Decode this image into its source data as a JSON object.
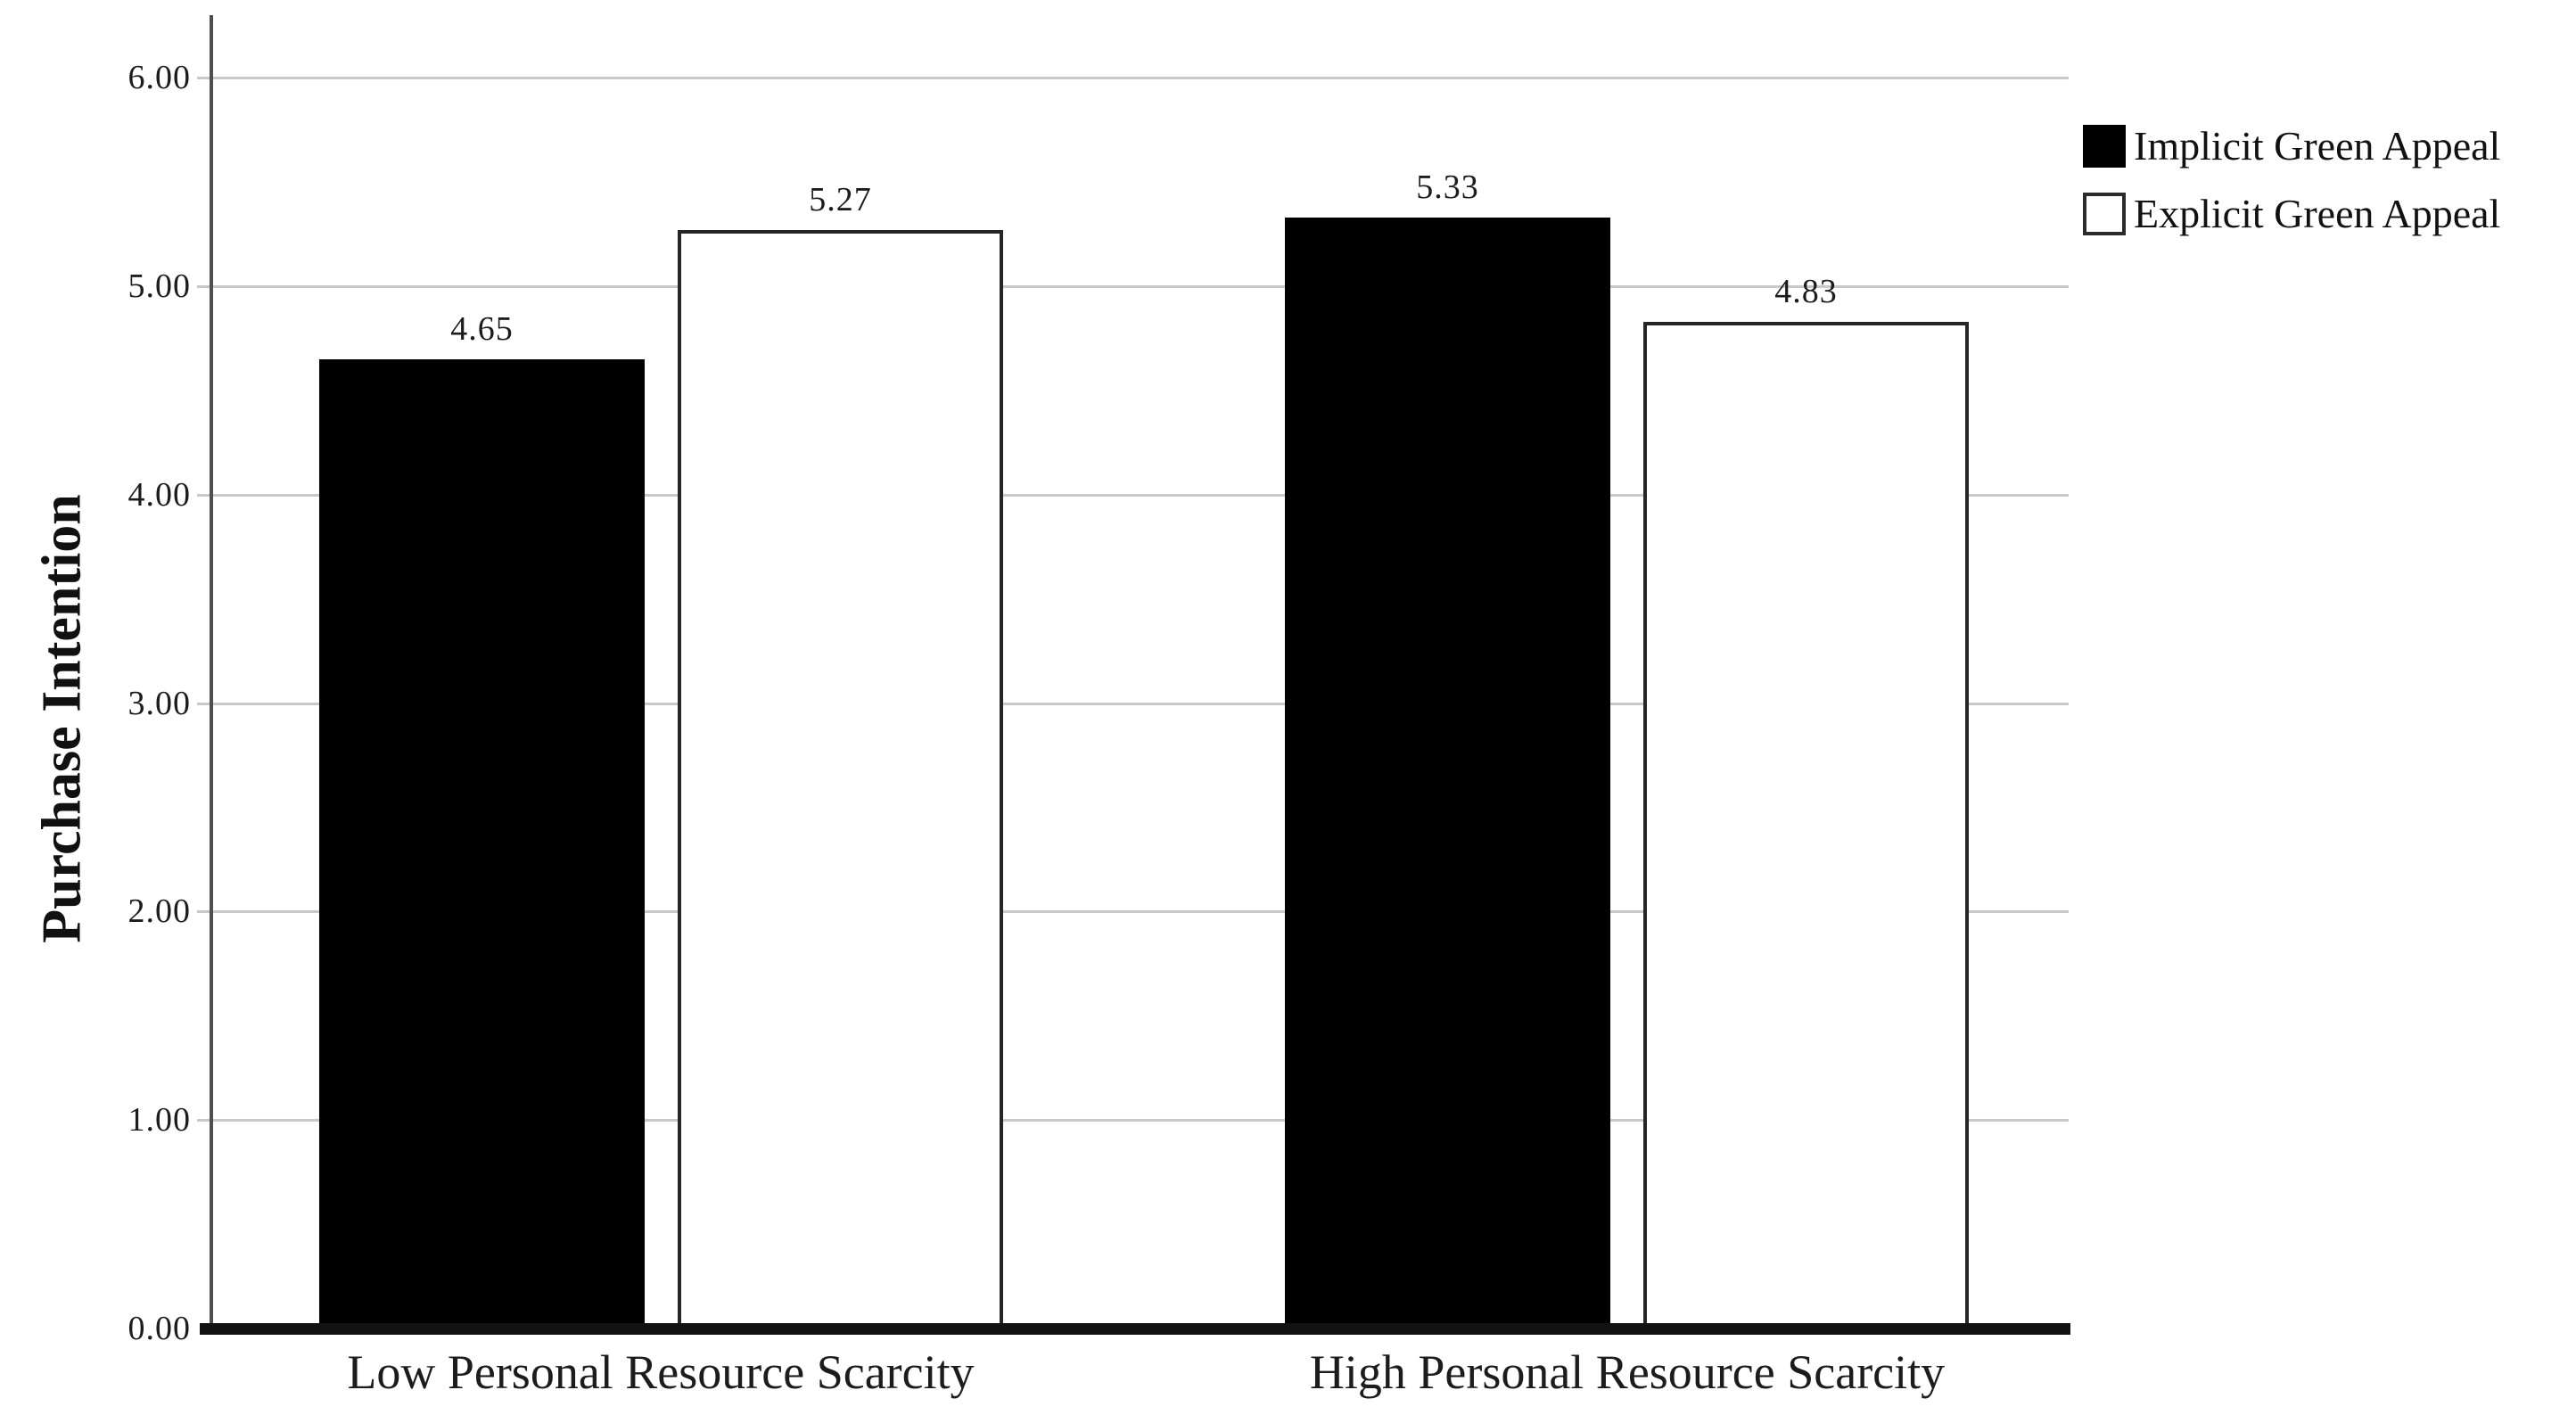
{
  "chart_data": {
    "type": "bar",
    "title": "",
    "ylabel": "Purchase Intention",
    "xlabel": "",
    "categories": [
      "Low Personal Resource Scarcity",
      "High Personal Resource Scarcity"
    ],
    "series": [
      {
        "name": "Implicit Green Appeal",
        "fill": "black",
        "color": "#000000",
        "values": [
          4.65,
          5.33
        ]
      },
      {
        "name": "Explicit Green Appeal",
        "fill": "white",
        "color": "#ffffff",
        "values": [
          5.27,
          4.83
        ]
      }
    ],
    "value_labels": [
      [
        "4.65",
        "5.27"
      ],
      [
        "5.33",
        "4.83"
      ]
    ],
    "yticks": [
      "0.00",
      "1.00",
      "2.00",
      "3.00",
      "4.00",
      "5.00",
      "6.00"
    ],
    "ylim": [
      0,
      6.3
    ],
    "grid": "horizontal",
    "legend_position": "top-right",
    "colors": {
      "grid": "#c8c8c8",
      "axis": "#4f4f4f",
      "baseline": "#121212",
      "bar_black": "#000000",
      "bar_white_fill": "#ffffff",
      "bar_white_border": "#262626",
      "text": "#1c1c1c"
    }
  }
}
